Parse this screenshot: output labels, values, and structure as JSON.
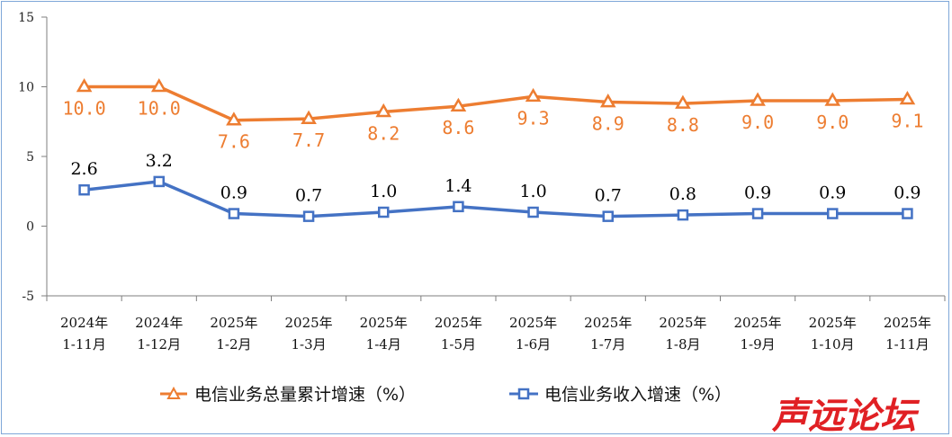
{
  "chart_data": {
    "type": "line",
    "categories": [
      [
        "2024年",
        "1-11月"
      ],
      [
        "2024年",
        "1-12月"
      ],
      [
        "2025年",
        "1-2月"
      ],
      [
        "2025年",
        "1-3月"
      ],
      [
        "2025年",
        "1-4月"
      ],
      [
        "2025年",
        "1-5月"
      ],
      [
        "2025年",
        "1-6月"
      ],
      [
        "2025年",
        "1-7月"
      ],
      [
        "2025年",
        "1-8月"
      ],
      [
        "2025年",
        "1-9月"
      ],
      [
        "2025年",
        "1-10月"
      ],
      [
        "2025年",
        "1-11月"
      ]
    ],
    "series": [
      {
        "name": "电信业务总量累计增速（%）",
        "color": "#ed7d31",
        "marker": "triangle",
        "values": [
          10.0,
          10.0,
          7.6,
          7.7,
          8.2,
          8.6,
          9.3,
          8.9,
          8.8,
          9.0,
          9.0,
          9.1
        ],
        "labels": [
          "10.0",
          "10.0",
          "7.6",
          "7.7",
          "8.2",
          "8.6",
          "9.3",
          "8.9",
          "8.8",
          "9.0",
          "9.0",
          "9.1"
        ]
      },
      {
        "name": "电信业务收入增速（%）",
        "color": "#4472c4",
        "marker": "square",
        "values": [
          2.6,
          3.2,
          0.9,
          0.7,
          1.0,
          1.4,
          1.0,
          0.7,
          0.8,
          0.9,
          0.9,
          0.9
        ],
        "labels": [
          "2.6",
          "3.2",
          "0.9",
          "0.7",
          "1.0",
          "1.4",
          "1.0",
          "0.7",
          "0.8",
          "0.9",
          "0.9",
          "0.9"
        ]
      }
    ],
    "yticks": [
      "15",
      "10",
      "5",
      "0",
      "-5"
    ],
    "ylim": [
      -5,
      15
    ],
    "grid": false,
    "legend_position": "bottom"
  },
  "watermark": "声远论坛"
}
